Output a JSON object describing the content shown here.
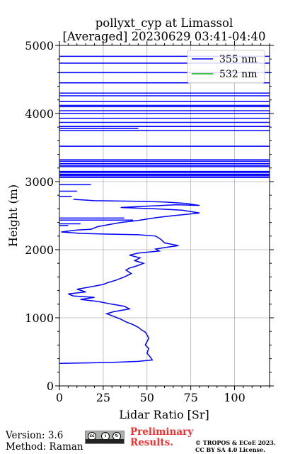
{
  "title_line1": "pollyxt_cyp at Limassol",
  "title_line2": "[Averaged] 20230629 03:41-04:40",
  "footer": {
    "version": "Version: 3.6",
    "method": "Method: Raman",
    "preliminary_line1": "Preliminary",
    "preliminary_line2": "Results.",
    "copyright_line1": "© TROPOS & ECoE 2023.",
    "copyright_line2": "CC BY SA 4.0 License.",
    "badge_icon": "cc-by-sa-icon"
  },
  "chart_data": {
    "type": "line",
    "xlabel": "Lidar Ratio [Sr]",
    "ylabel": "Height (m)",
    "xlim": [
      0,
      120
    ],
    "ylim": [
      0,
      5000
    ],
    "xticks": [
      0,
      25,
      50,
      75,
      100
    ],
    "yticks": [
      0,
      1000,
      2000,
      3000,
      4000,
      5000
    ],
    "grid": true,
    "legend_position": "top-right",
    "colors": {
      "355 nm": "#0000ff",
      "532 nm": "#00b000"
    },
    "series": [
      {
        "name": "355 nm",
        "points": [
          [
            0,
            330
          ],
          [
            30,
            345
          ],
          [
            45,
            360
          ],
          [
            53,
            380
          ],
          [
            52,
            420
          ],
          [
            50,
            480
          ],
          [
            51,
            550
          ],
          [
            49,
            600
          ],
          [
            50,
            650
          ],
          [
            51,
            700
          ],
          [
            50,
            750
          ],
          [
            49,
            790
          ],
          [
            47,
            820
          ],
          [
            45,
            860
          ],
          [
            42,
            900
          ],
          [
            38,
            940
          ],
          [
            35,
            980
          ],
          [
            30,
            1030
          ],
          [
            27,
            1060
          ],
          [
            31,
            1090
          ],
          [
            40,
            1130
          ],
          [
            37,
            1170
          ],
          [
            30,
            1200
          ],
          [
            22,
            1240
          ],
          [
            12,
            1270
          ],
          [
            20,
            1300
          ],
          [
            8,
            1320
          ],
          [
            5,
            1350
          ],
          [
            15,
            1380
          ],
          [
            10,
            1420
          ],
          [
            19,
            1460
          ],
          [
            25,
            1490
          ],
          [
            28,
            1520
          ],
          [
            32,
            1550
          ],
          [
            37,
            1600
          ],
          [
            41,
            1650
          ],
          [
            38,
            1700
          ],
          [
            40,
            1730
          ],
          [
            44,
            1760
          ],
          [
            48,
            1800
          ],
          [
            43,
            1840
          ],
          [
            46,
            1880
          ],
          [
            40,
            1920
          ],
          [
            45,
            1950
          ],
          [
            57,
            1980
          ],
          [
            55,
            2010
          ],
          [
            62,
            2040
          ],
          [
            68,
            2060
          ],
          [
            60,
            2100
          ],
          [
            58,
            2150
          ],
          [
            55,
            2200
          ],
          [
            45,
            2220
          ],
          [
            25,
            2230
          ],
          [
            12,
            2240
          ],
          [
            1,
            2260
          ],
          [
            10,
            2290
          ],
          [
            18,
            2300
          ],
          [
            22,
            2340
          ],
          [
            35,
            2400
          ],
          [
            45,
            2430
          ],
          [
            55,
            2470
          ],
          [
            65,
            2500
          ],
          [
            80,
            2540
          ],
          [
            70,
            2580
          ],
          [
            55,
            2600
          ],
          [
            35,
            2620
          ],
          [
            50,
            2640
          ],
          [
            67,
            2660
          ],
          [
            80,
            2650
          ],
          [
            72,
            2680
          ],
          [
            60,
            2700
          ],
          [
            45,
            2710
          ],
          [
            20,
            2720
          ],
          [
            8,
            2740
          ]
        ]
      },
      {
        "name": "532 nm",
        "points": []
      }
    ],
    "spikes_355nm": [
      [
        2465,
        0,
        37
      ],
      [
        2435,
        0,
        42
      ],
      [
        2380,
        0,
        12
      ],
      [
        2355,
        0,
        5
      ],
      [
        2780,
        0,
        7
      ],
      [
        2860,
        0,
        10
      ],
      [
        2955,
        0,
        18
      ],
      [
        3060,
        0,
        120
      ],
      [
        3085,
        0,
        120
      ],
      [
        3100,
        0,
        120
      ],
      [
        3110,
        0,
        120
      ],
      [
        3135,
        0,
        120
      ],
      [
        3150,
        0,
        120
      ],
      [
        3220,
        0,
        120
      ],
      [
        3240,
        0,
        120
      ],
      [
        3265,
        0,
        120
      ],
      [
        3300,
        0,
        120
      ],
      [
        3320,
        0,
        120
      ],
      [
        3520,
        0,
        120
      ],
      [
        3750,
        0,
        120
      ],
      [
        3780,
        0,
        45
      ],
      [
        3810,
        0,
        120
      ],
      [
        3870,
        0,
        120
      ],
      [
        3930,
        0,
        120
      ],
      [
        4000,
        0,
        120
      ],
      [
        4040,
        0,
        120
      ],
      [
        4100,
        0,
        120
      ],
      [
        4120,
        0,
        120
      ],
      [
        4175,
        0,
        120
      ],
      [
        4260,
        0,
        120
      ],
      [
        4300,
        0,
        120
      ],
      [
        4450,
        0,
        120
      ],
      [
        4600,
        0,
        120
      ],
      [
        4740,
        0,
        120
      ],
      [
        4840,
        0,
        120
      ]
    ]
  }
}
